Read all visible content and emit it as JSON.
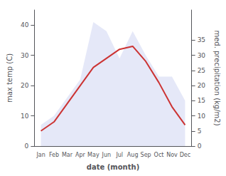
{
  "chart_data": {
    "type": "line",
    "categories": [
      "Jan",
      "Feb",
      "Mar",
      "Apr",
      "May",
      "Jun",
      "Jul",
      "Aug",
      "Sep",
      "Oct",
      "Nov",
      "Dec"
    ],
    "series": [
      {
        "type": "line",
        "color": "#cc3333",
        "values": [
          5,
          8,
          14,
          20,
          26,
          29,
          32,
          33,
          28,
          21,
          13,
          7
        ]
      },
      {
        "type": "area",
        "axis": "y2",
        "color": "#c5cdf0",
        "values": [
          7,
          10,
          16,
          22,
          41,
          38,
          29,
          38,
          30,
          23,
          23,
          15
        ]
      }
    ],
    "xlabel": "date (month)",
    "ylabel": "max temp (C)",
    "y2label": "med. precipitation (kg/m2)",
    "ylim": [
      0,
      45
    ],
    "yticks": [
      0,
      10,
      20,
      30,
      40
    ],
    "y2lim": [
      0,
      45
    ],
    "y2ticks": [
      0,
      5,
      10,
      15,
      20,
      25,
      30,
      35
    ],
    "grid": false
  }
}
